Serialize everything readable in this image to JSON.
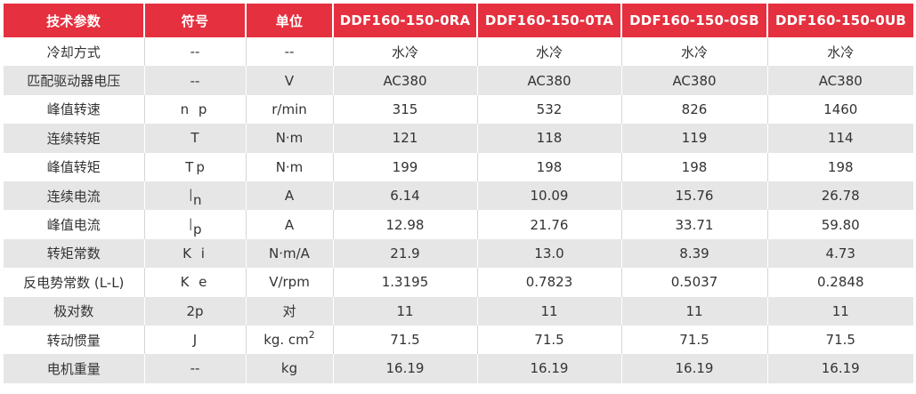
{
  "header": {
    "param": "技术参数",
    "symbol": "符号",
    "unit": "单位",
    "models": [
      "DDF160-150-0RA",
      "DDF160-150-0TA",
      "DDF160-150-0SB",
      "DDF160-150-0UB"
    ]
  },
  "rows": [
    {
      "param": "冷却方式",
      "symbol": "--",
      "unit": "--",
      "values": [
        "水冷",
        "水冷",
        "水冷",
        "水冷"
      ]
    },
    {
      "param": "匹配驱动器电压",
      "symbol": "--",
      "unit": "V",
      "values": [
        "AC380",
        "AC380",
        "AC380",
        "AC380"
      ]
    },
    {
      "param": "峰值转速",
      "symbol": "n p",
      "unit": "r/min",
      "values": [
        "315",
        "532",
        "826",
        "1460"
      ]
    },
    {
      "param": "连续转矩",
      "symbol": "T",
      "unit": "N·m",
      "values": [
        "121",
        "118",
        "119",
        "114"
      ]
    },
    {
      "param": "峰值转矩",
      "symbol_main": "T",
      "symbol_sub": "p",
      "unit": "N·m",
      "values": [
        "199",
        "198",
        "198",
        "198"
      ]
    },
    {
      "param": "连续电流",
      "symbol_main": "I",
      "symbol_sub": "n",
      "unit": "A",
      "values": [
        "6.14",
        "10.09",
        "15.76",
        "26.78"
      ]
    },
    {
      "param": "峰值电流",
      "symbol_main": "I",
      "symbol_sub": "p",
      "unit": "A",
      "values": [
        "12.98",
        "21.76",
        "33.71",
        "59.80"
      ]
    },
    {
      "param": "转矩常数",
      "symbol": "K i",
      "unit": "N·m/A",
      "values": [
        "21.9",
        "13.0",
        "8.39",
        "4.73"
      ]
    },
    {
      "param": "反电势常数 (L-L)",
      "symbol": "K e",
      "unit": "V/rpm",
      "values": [
        "1.3195",
        "0.7823",
        "0.5037",
        "0.2848"
      ]
    },
    {
      "param": "极对数",
      "symbol": "2p",
      "unit": "对",
      "values": [
        "11",
        "11",
        "11",
        "11"
      ]
    },
    {
      "param": "转动惯量",
      "symbol": "J",
      "unit_main": "kg. cm",
      "unit_sup": "2",
      "values": [
        "71.5",
        "71.5",
        "71.5",
        "71.5"
      ]
    },
    {
      "param": "电机重量",
      "symbol": "--",
      "unit": "kg",
      "values": [
        "16.19",
        "16.19",
        "16.19",
        "16.19"
      ]
    }
  ],
  "colors": {
    "header_bg": "#e5303f",
    "stripe_bg": "#e6e6e6"
  }
}
